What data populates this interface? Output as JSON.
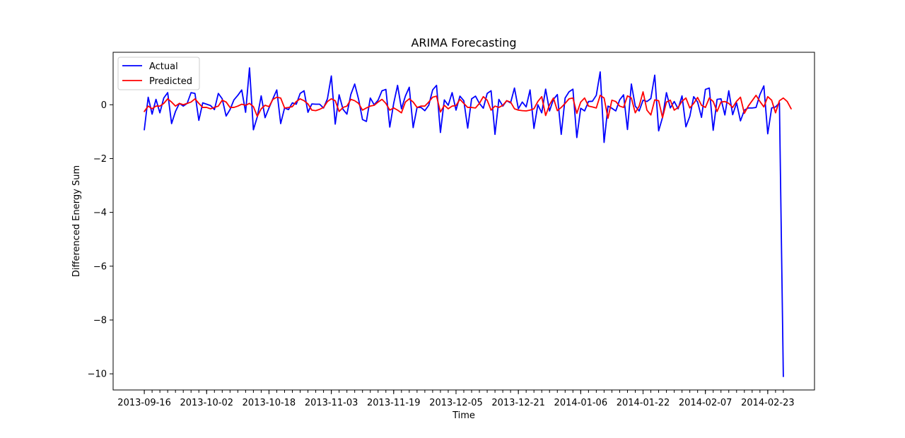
{
  "chart_data": {
    "type": "line",
    "title": "ARIMA Forecasting",
    "xlabel": "Time",
    "ylabel": "Differenced Energy Sum",
    "x_start": "2013-09-16",
    "x_end": "2014-02-27",
    "xticks": [
      "2013-09-16",
      "2013-10-02",
      "2013-10-18",
      "2013-11-03",
      "2013-11-19",
      "2013-12-05",
      "2013-12-21",
      "2014-01-06",
      "2014-01-22",
      "2014-02-07",
      "2014-02-23"
    ],
    "yticks": [
      0,
      -2,
      -4,
      -6,
      -8,
      -10
    ],
    "ytick_labels": [
      "0",
      "−2",
      "−4",
      "−6",
      "−8",
      "−10"
    ],
    "ylim": [
      -10.6,
      1.95
    ],
    "xlim": [
      "2013-09-08",
      "2014-03-07"
    ],
    "grid": false,
    "legend_position": "upper-left",
    "series": [
      {
        "name": "Actual",
        "color": "#0000ff",
        "values": [
          -0.93,
          0.28,
          -0.35,
          0.2,
          -0.3,
          0.25,
          0.45,
          -0.7,
          -0.25,
          0.05,
          -0.05,
          0.05,
          0.45,
          0.42,
          -0.58,
          0.07,
          0.02,
          -0.03,
          -0.18,
          0.42,
          0.22,
          -0.42,
          -0.18,
          0.18,
          0.35,
          0.55,
          -0.28,
          1.37,
          -0.93,
          -0.45,
          0.33,
          -0.48,
          -0.12,
          0.22,
          0.55,
          -0.7,
          -0.12,
          -0.18,
          0.07,
          0.02,
          0.42,
          0.52,
          -0.28,
          0.03,
          0.02,
          0.02,
          -0.12,
          0.22,
          1.07,
          -0.72,
          0.37,
          -0.17,
          -0.35,
          0.38,
          0.77,
          0.2,
          -0.55,
          -0.62,
          0.25,
          0.0,
          0.17,
          0.52,
          0.57,
          -0.83,
          0.05,
          0.72,
          -0.15,
          0.32,
          0.65,
          -0.85,
          -0.1,
          -0.1,
          -0.22,
          -0.02,
          0.55,
          0.72,
          -1.03,
          0.18,
          -0.02,
          0.45,
          -0.2,
          0.32,
          0.15,
          -0.87,
          0.22,
          0.32,
          0.05,
          -0.13,
          0.42,
          0.52,
          -1.1,
          0.2,
          -0.05,
          0.15,
          0.07,
          0.62,
          -0.15,
          0.1,
          -0.08,
          0.55,
          -0.88,
          0.0,
          -0.3,
          0.58,
          -0.23,
          0.2,
          0.38,
          -1.1,
          0.25,
          0.48,
          0.58,
          -1.22,
          -0.13,
          -0.23,
          0.12,
          0.13,
          0.35,
          1.22,
          -1.4,
          -0.05,
          -0.13,
          -0.23,
          0.18,
          0.37,
          -0.92,
          0.77,
          -0.05,
          -0.23,
          0.17,
          0.12,
          0.23,
          1.1,
          -0.97,
          -0.47,
          0.45,
          -0.12,
          0.12,
          -0.15,
          0.33,
          -0.82,
          -0.43,
          0.3,
          0.1,
          -0.47,
          0.57,
          0.62,
          -0.95,
          0.2,
          0.22,
          -0.38,
          0.52,
          -0.37,
          0.07,
          -0.6,
          -0.2,
          -0.12,
          -0.12,
          -0.1,
          0.38,
          0.7,
          -1.08,
          -0.12,
          -0.08,
          0.07,
          -10.1
        ]
      },
      {
        "name": "Predicted",
        "color": "#ff0000",
        "values": [
          -0.25,
          -0.05,
          -0.15,
          -0.05,
          -0.05,
          0.05,
          0.22,
          0.1,
          -0.05,
          0.05,
          0.0,
          0.05,
          0.1,
          0.22,
          0.05,
          -0.1,
          -0.1,
          -0.15,
          -0.1,
          -0.05,
          0.17,
          0.1,
          -0.1,
          -0.1,
          -0.05,
          0.02,
          -0.02,
          0.05,
          -0.07,
          -0.43,
          -0.15,
          -0.02,
          -0.07,
          0.2,
          0.28,
          0.25,
          -0.12,
          -0.1,
          -0.07,
          0.12,
          0.22,
          0.15,
          0.03,
          -0.2,
          -0.22,
          -0.17,
          -0.1,
          0.12,
          0.22,
          0.15,
          -0.25,
          -0.1,
          -0.05,
          0.2,
          0.15,
          0.05,
          -0.2,
          -0.12,
          -0.05,
          -0.02,
          0.1,
          0.2,
          0.05,
          -0.2,
          -0.12,
          -0.2,
          -0.3,
          0.1,
          0.22,
          0.1,
          -0.1,
          -0.05,
          -0.05,
          0.1,
          0.28,
          0.32,
          -0.27,
          -0.02,
          -0.15,
          -0.05,
          -0.03,
          0.2,
          0.05,
          -0.1,
          -0.1,
          -0.12,
          0.05,
          0.3,
          0.17,
          -0.2,
          -0.05,
          -0.1,
          -0.02,
          0.15,
          0.1,
          -0.15,
          -0.2,
          -0.22,
          -0.23,
          -0.2,
          -0.15,
          0.12,
          0.3,
          -0.4,
          0.0,
          0.25,
          -0.22,
          -0.1,
          0.05,
          0.22,
          0.25,
          -0.32,
          0.1,
          0.25,
          -0.05,
          -0.08,
          -0.12,
          0.35,
          0.25,
          -0.5,
          0.17,
          0.12,
          -0.05,
          -0.1,
          0.33,
          0.25,
          -0.3,
          -0.05,
          0.48,
          -0.2,
          -0.38,
          0.18,
          0.15,
          -0.48,
          0.1,
          0.17,
          -0.2,
          -0.1,
          0.13,
          0.25,
          -0.12,
          0.05,
          0.27,
          -0.02,
          -0.1,
          0.25,
          0.12,
          -0.25,
          0.1,
          0.12,
          0.05,
          -0.1,
          0.13,
          0.28,
          -0.32,
          -0.05,
          0.15,
          0.35,
          0.12,
          -0.08,
          0.3,
          0.17,
          -0.3,
          0.15,
          0.25,
          0.12,
          -0.15
        ]
      }
    ]
  }
}
